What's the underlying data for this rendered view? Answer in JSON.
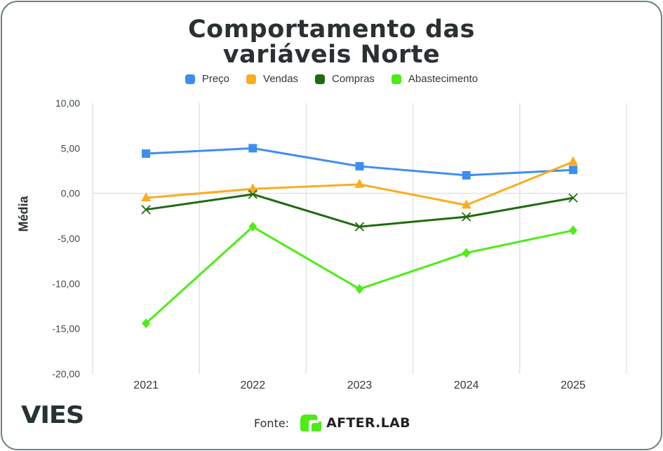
{
  "chart_data": {
    "type": "line",
    "title": "Comportamento das variáveis Norte",
    "title_lines": [
      "Comportamento das",
      "variáveis Norte"
    ],
    "xlabel": "",
    "ylabel": "Média",
    "categories": [
      "2021",
      "2022",
      "2023",
      "2024",
      "2025"
    ],
    "ylim": [
      -20,
      10
    ],
    "yticks": [
      10,
      5,
      0,
      -5,
      -10,
      -15,
      -20
    ],
    "ytick_labels": [
      "10,00",
      "5,00",
      "0,00",
      "-5,00",
      "-10,00",
      "-15,00",
      "-20,00"
    ],
    "grid": "vertical category separators and zero line",
    "legend_position": "top",
    "series": [
      {
        "name": "Preço",
        "color": "#3d8ef0",
        "marker": "square",
        "values": [
          4.4,
          5.0,
          3.0,
          2.0,
          2.6
        ]
      },
      {
        "name": "Vendas",
        "color": "#f9ad1f",
        "marker": "triangle",
        "values": [
          -0.5,
          0.5,
          1.0,
          -1.3,
          3.5
        ]
      },
      {
        "name": "Compras",
        "color": "#1f6b0f",
        "marker": "x",
        "values": [
          -1.8,
          -0.1,
          -3.7,
          -2.6,
          -0.5
        ]
      },
      {
        "name": "Abastecimento",
        "color": "#4eec17",
        "marker": "diamond",
        "values": [
          -14.4,
          -3.7,
          -10.6,
          -6.6,
          -4.1
        ]
      }
    ]
  },
  "footer": {
    "brand": "VIES",
    "source_label": "Fonte:",
    "source_name": "AFTER.LAB",
    "source_logo_color": "#4eec17"
  }
}
